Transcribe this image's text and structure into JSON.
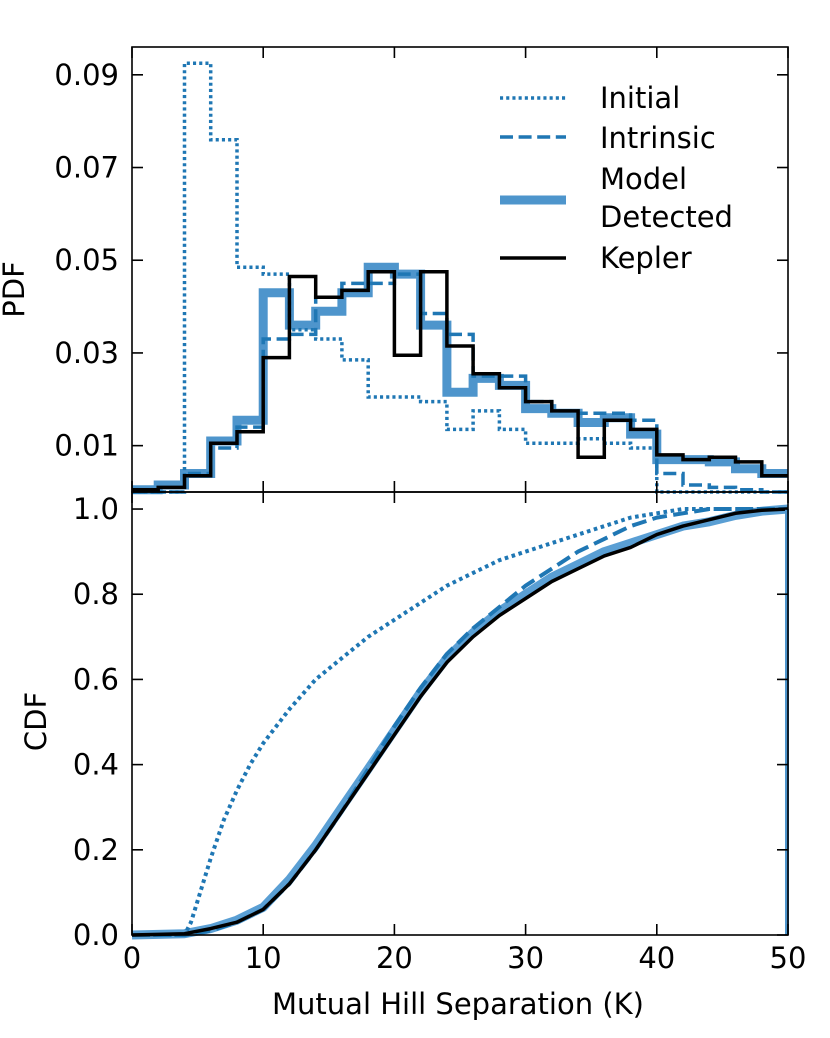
{
  "chart_data": [
    {
      "type": "line",
      "panel": "top",
      "drawstyle": "step",
      "title": "",
      "xlabel": "",
      "ylabel": "PDF",
      "xlim": [
        0,
        50
      ],
      "ylim": [
        0,
        0.096
      ],
      "yticks": [
        0.01,
        0.03,
        0.05,
        0.07,
        0.09
      ],
      "ytick_labels": [
        "0.01",
        "0.03",
        "0.05",
        "0.07",
        "0.09"
      ],
      "xticks": [
        0,
        10,
        20,
        30,
        40,
        50
      ],
      "bin_edges": [
        0,
        2,
        4,
        6,
        8,
        10,
        12,
        14,
        16,
        18,
        20,
        22,
        24,
        26,
        28,
        30,
        32,
        34,
        36,
        38,
        40,
        42,
        44,
        46,
        48,
        50
      ],
      "legend": {
        "location": "top-right",
        "frame": false
      },
      "series": [
        {
          "name": "Initial",
          "style": "dotted",
          "color": "#1f77b4",
          "width": 3.5,
          "values": [
            0.0,
            0.0,
            0.0925,
            0.076,
            0.0485,
            0.047,
            0.035,
            0.033,
            0.0285,
            0.0205,
            0.0205,
            0.0195,
            0.0135,
            0.0175,
            0.0135,
            0.0105,
            0.0105,
            0.0115,
            0.0105,
            0.0095,
            0.0,
            0.0,
            0.0,
            0.0,
            0.0
          ]
        },
        {
          "name": "Intrinsic",
          "style": "dashed",
          "color": "#1f77b4",
          "width": 3.5,
          "values": [
            0.0,
            0.0,
            0.004,
            0.0095,
            0.014,
            0.033,
            0.034,
            0.042,
            0.045,
            0.045,
            0.047,
            0.0385,
            0.034,
            0.025,
            0.025,
            0.0195,
            0.0175,
            0.017,
            0.017,
            0.0155,
            0.004,
            0.0015,
            0.001,
            0.0005,
            0.0
          ]
        },
        {
          "name": "Model\nDetected",
          "label_lines": [
            "Model",
            "Detected"
          ],
          "style": "solid",
          "color": "#4e95cc",
          "width": 9,
          "values": [
            0.0005,
            0.0015,
            0.004,
            0.011,
            0.0155,
            0.043,
            0.036,
            0.039,
            0.043,
            0.0485,
            0.047,
            0.036,
            0.0215,
            0.0245,
            0.023,
            0.018,
            0.017,
            0.015,
            0.016,
            0.0125,
            0.007,
            0.007,
            0.0065,
            0.005,
            0.004
          ]
        },
        {
          "name": "Kepler",
          "style": "solid",
          "color": "#000000",
          "width": 3.5,
          "values": [
            0.0005,
            0.001,
            0.0035,
            0.0105,
            0.013,
            0.029,
            0.0465,
            0.042,
            0.0435,
            0.0475,
            0.0295,
            0.0475,
            0.0315,
            0.0255,
            0.0225,
            0.0195,
            0.0175,
            0.0075,
            0.0155,
            0.0135,
            0.008,
            0.007,
            0.0075,
            0.0065,
            0.0035
          ]
        }
      ]
    },
    {
      "type": "line",
      "panel": "bottom",
      "title": "",
      "xlabel": "Mutual Hill Separation (K)",
      "ylabel": "CDF",
      "xlim": [
        0,
        50
      ],
      "ylim": [
        0.0,
        1.04
      ],
      "yticks": [
        0.0,
        0.2,
        0.4,
        0.6,
        0.8,
        1.0
      ],
      "ytick_labels": [
        "0.0",
        "0.2",
        "0.4",
        "0.6",
        "0.8",
        "1.0"
      ],
      "xticks": [
        0,
        10,
        20,
        30,
        40,
        50
      ],
      "xtick_labels": [
        "0",
        "10",
        "20",
        "30",
        "40",
        "50"
      ],
      "series": [
        {
          "name": "Initial",
          "style": "dotted",
          "color": "#1f77b4",
          "width": 4,
          "x": [
            0,
            4,
            4.5,
            5,
            6,
            7,
            8,
            9,
            10,
            12,
            14,
            16,
            18,
            20,
            22,
            24,
            26,
            28,
            30,
            32,
            34,
            36,
            38,
            40,
            42,
            44,
            46,
            48,
            50
          ],
          "y": [
            0.0,
            0.0,
            0.03,
            0.08,
            0.18,
            0.27,
            0.34,
            0.4,
            0.45,
            0.53,
            0.6,
            0.65,
            0.7,
            0.74,
            0.78,
            0.82,
            0.85,
            0.88,
            0.9,
            0.92,
            0.94,
            0.96,
            0.98,
            0.99,
            1.0,
            1.0,
            1.0,
            1.0,
            1.0
          ]
        },
        {
          "name": "Intrinsic",
          "style": "dashed",
          "color": "#1f77b4",
          "width": 4,
          "x": [
            0,
            4,
            6,
            8,
            10,
            12,
            14,
            16,
            18,
            20,
            22,
            24,
            26,
            28,
            30,
            32,
            34,
            36,
            38,
            40,
            42,
            44,
            46,
            48,
            50
          ],
          "y": [
            0.0,
            0.0,
            0.01,
            0.03,
            0.06,
            0.12,
            0.2,
            0.29,
            0.39,
            0.49,
            0.58,
            0.66,
            0.72,
            0.77,
            0.82,
            0.86,
            0.9,
            0.93,
            0.96,
            0.98,
            0.99,
            1.0,
            1.0,
            1.0,
            1.0
          ]
        },
        {
          "name": "Model Detected",
          "style": "solid",
          "color": "#5a9fd4",
          "width": 9,
          "x": [
            0,
            4,
            6,
            8,
            10,
            12,
            14,
            16,
            18,
            20,
            22,
            24,
            26,
            28,
            30,
            32,
            34,
            36,
            38,
            40,
            42,
            44,
            46,
            48,
            50
          ],
          "y": [
            0.0,
            0.003,
            0.015,
            0.035,
            0.065,
            0.13,
            0.21,
            0.3,
            0.39,
            0.48,
            0.57,
            0.65,
            0.71,
            0.76,
            0.8,
            0.84,
            0.87,
            0.9,
            0.92,
            0.94,
            0.96,
            0.97,
            0.985,
            0.995,
            1.0
          ]
        },
        {
          "name": "Kepler",
          "style": "solid",
          "color": "#000000",
          "width": 3.5,
          "x": [
            0,
            4,
            6,
            8,
            10,
            12,
            14,
            16,
            18,
            20,
            22,
            24,
            26,
            28,
            30,
            32,
            34,
            36,
            38,
            40,
            42,
            44,
            46,
            48,
            50
          ],
          "y": [
            0.0,
            0.003,
            0.015,
            0.03,
            0.06,
            0.12,
            0.2,
            0.29,
            0.38,
            0.47,
            0.56,
            0.64,
            0.7,
            0.75,
            0.79,
            0.83,
            0.86,
            0.89,
            0.91,
            0.94,
            0.96,
            0.975,
            0.99,
            0.997,
            1.0
          ]
        }
      ]
    }
  ]
}
